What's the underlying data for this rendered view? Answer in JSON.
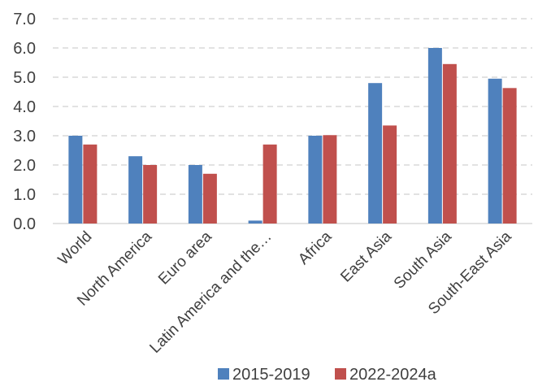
{
  "chart_data": {
    "type": "bar",
    "title": "",
    "xlabel": "",
    "ylabel": "",
    "categories": [
      "World",
      "North America",
      "Euro area",
      "Latin America and the…",
      "Africa",
      "East Asia",
      "South Asia",
      "South-East Asia"
    ],
    "series": [
      {
        "name": "2015-2019",
        "color": "#4f81bd",
        "values": [
          3.0,
          2.3,
          2.0,
          0.1,
          3.0,
          4.8,
          6.0,
          4.95
        ]
      },
      {
        "name": "2022-2024a",
        "color": "#c0504d",
        "values": [
          2.7,
          2.0,
          1.7,
          2.7,
          3.02,
          3.35,
          5.45,
          4.63
        ]
      }
    ],
    "ylim": [
      0,
      7
    ],
    "yticks": [
      "0.0",
      "1.0",
      "2.0",
      "3.0",
      "4.0",
      "5.0",
      "6.0",
      "7.0"
    ],
    "grid": true,
    "legend": "bottom"
  }
}
